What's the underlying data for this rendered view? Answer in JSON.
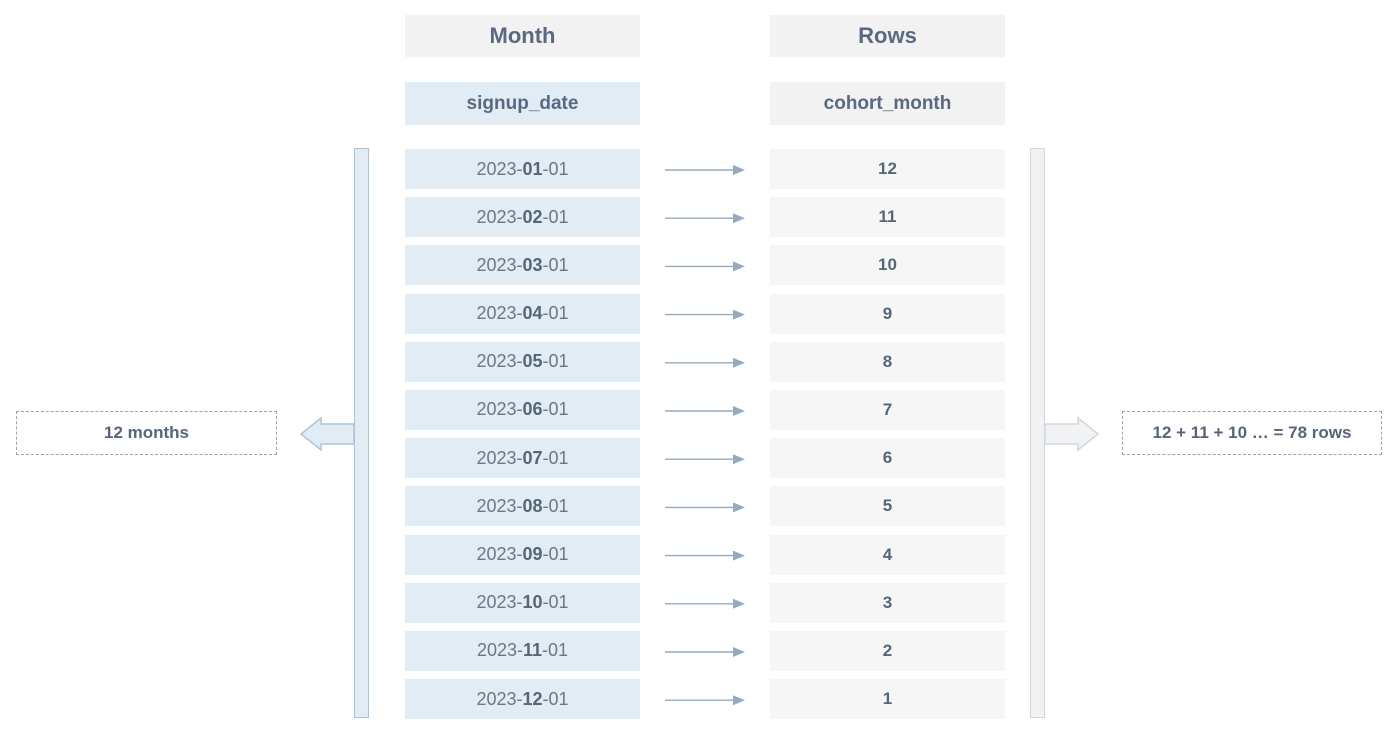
{
  "headers": {
    "left": "Month",
    "right": "Rows"
  },
  "columns": {
    "left": "signup_date",
    "right": "cohort_month"
  },
  "rows": [
    {
      "pre": "2023-",
      "month": "01",
      "post": "-01",
      "count": "12"
    },
    {
      "pre": "2023-",
      "month": "02",
      "post": "-01",
      "count": "11"
    },
    {
      "pre": "2023-",
      "month": "03",
      "post": "-01",
      "count": "10"
    },
    {
      "pre": "2023-",
      "month": "04",
      "post": "-01",
      "count": "9"
    },
    {
      "pre": "2023-",
      "month": "05",
      "post": "-01",
      "count": "8"
    },
    {
      "pre": "2023-",
      "month": "06",
      "post": "-01",
      "count": "7"
    },
    {
      "pre": "2023-",
      "month": "07",
      "post": "-01",
      "count": "6"
    },
    {
      "pre": "2023-",
      "month": "08",
      "post": "-01",
      "count": "5"
    },
    {
      "pre": "2023-",
      "month": "09",
      "post": "-01",
      "count": "4"
    },
    {
      "pre": "2023-",
      "month": "10",
      "post": "-01",
      "count": "3"
    },
    {
      "pre": "2023-",
      "month": "11",
      "post": "-01",
      "count": "2"
    },
    {
      "pre": "2023-",
      "month": "12",
      "post": "-01",
      "count": "1"
    }
  ],
  "summary": {
    "left": "12 months",
    "right": "12 + 11 + 10 … = 78 rows"
  },
  "colors": {
    "arrow": "#95aac0",
    "left_fill": "#e2ecf4",
    "right_fill": "#f6f6f7",
    "text": "#56657a"
  }
}
